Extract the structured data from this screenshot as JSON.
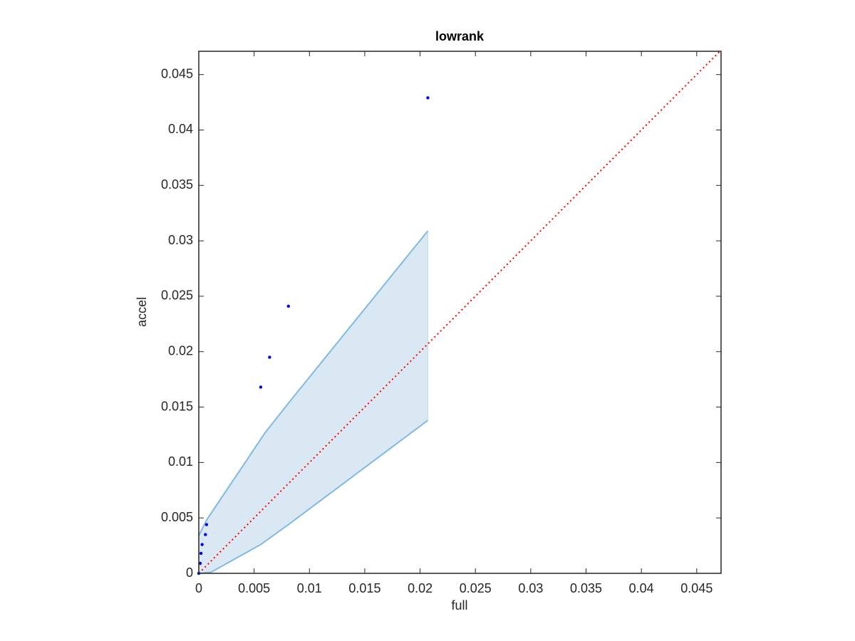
{
  "chart_data": {
    "type": "scatter",
    "title": "lowrank",
    "xlabel": "full",
    "ylabel": "accel",
    "xlim": [
      0,
      0.0472
    ],
    "ylim": [
      0,
      0.0471
    ],
    "xticks": [
      0,
      0.005,
      0.01,
      0.015,
      0.02,
      0.025,
      0.03,
      0.035,
      0.04,
      0.045
    ],
    "yticks": [
      0,
      0.005,
      0.01,
      0.015,
      0.02,
      0.025,
      0.03,
      0.035,
      0.04,
      0.045
    ],
    "grid": false,
    "band": {
      "color": "#80b9e1",
      "fill_color": "#dae8f4",
      "upper": {
        "x": [
          0,
          0.0007,
          0.006,
          0.0083,
          0.0207
        ],
        "y": [
          0.0034,
          0.0048,
          0.0127,
          0.0156,
          0.0309
        ]
      },
      "lower": {
        "x": [
          0,
          0.0011,
          0.0056,
          0.0081,
          0.0207
        ],
        "y": [
          0,
          0.0001,
          0.0026,
          0.0044,
          0.0138
        ]
      }
    },
    "reference_line": {
      "color": "#ff0000",
      "style": "dotted",
      "x": [
        0,
        0.0472
      ],
      "y": [
        0,
        0.0472
      ]
    },
    "series": [
      {
        "color": "#0000ff",
        "x": [
          0,
          0.00013,
          0.0002,
          0.0003,
          0.0006,
          0.0007,
          0.0056,
          0.0064,
          0.0081,
          0.0207
        ],
        "values": [
          0,
          0.0009,
          0.0018,
          0.0026,
          0.0035,
          0.0044,
          0.0168,
          0.0195,
          0.0241,
          0.0429
        ]
      }
    ]
  }
}
